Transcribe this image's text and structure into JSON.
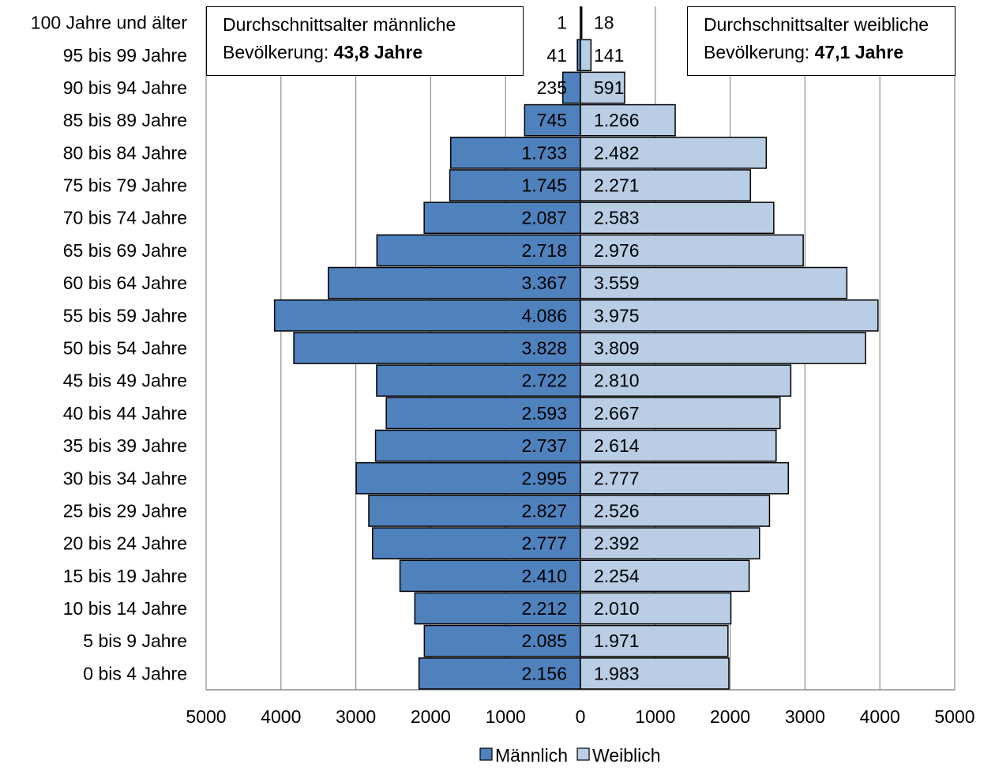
{
  "chart_data": {
    "type": "bar",
    "orientation": "horizontal",
    "layout": "population-pyramid",
    "categories": [
      "100 Jahre und älter",
      "95 bis 99 Jahre",
      "90 bis 94 Jahre",
      "85 bis 89 Jahre",
      "80 bis 84 Jahre",
      "75 bis 79 Jahre",
      "70 bis 74 Jahre",
      "65 bis 69 Jahre",
      "60 bis 64 Jahre",
      "55 bis 59 Jahre",
      "50 bis 54 Jahre",
      "45 bis 49 Jahre",
      "40 bis 44 Jahre",
      "35 bis 39 Jahre",
      "30 bis 34 Jahre",
      "25 bis 29 Jahre",
      "20 bis 24 Jahre",
      "15 bis 19 Jahre",
      "10 bis 14 Jahre",
      "5 bis 9 Jahre",
      "0 bis 4 Jahre"
    ],
    "series": [
      {
        "name": "Männlich",
        "color": "#4f81bd",
        "values": [
          1,
          41,
          235,
          745,
          1733,
          1745,
          2087,
          2718,
          3367,
          4086,
          3828,
          2722,
          2593,
          2737,
          2995,
          2827,
          2777,
          2410,
          2212,
          2085,
          2156
        ],
        "labels": [
          "1",
          "41",
          "235",
          "745",
          "1.733",
          "1.745",
          "2.087",
          "2.718",
          "3.367",
          "4.086",
          "3.828",
          "2.722",
          "2.593",
          "2.737",
          "2.995",
          "2.827",
          "2.777",
          "2.410",
          "2.212",
          "2.085",
          "2.156"
        ]
      },
      {
        "name": "Weiblich",
        "color": "#b9cde5",
        "values": [
          18,
          141,
          591,
          1266,
          2482,
          2271,
          2583,
          2976,
          3559,
          3975,
          3809,
          2810,
          2667,
          2614,
          2777,
          2526,
          2392,
          2254,
          2010,
          1971,
          1983
        ],
        "labels": [
          "18",
          "141",
          "591",
          "1.266",
          "2.482",
          "2.271",
          "2.583",
          "2.976",
          "3.559",
          "3.975",
          "3.809",
          "2.810",
          "2.667",
          "2.614",
          "2.777",
          "2.526",
          "2.392",
          "2.254",
          "2.010",
          "1.971",
          "1.983"
        ]
      }
    ],
    "xlim": [
      -5000,
      5000
    ],
    "xticks": [
      -5000,
      -4000,
      -3000,
      -2000,
      -1000,
      0,
      1000,
      2000,
      3000,
      4000,
      5000
    ],
    "xtick_labels": [
      "5000",
      "4000",
      "3000",
      "2000",
      "1000",
      "0",
      "1000",
      "2000",
      "3000",
      "4000",
      "5000"
    ],
    "grid": true,
    "legend_position": "bottom",
    "annotations": {
      "male": {
        "text": "Durchschnittsalter männliche",
        "text2": "Bevölkerung: ",
        "value": "43,8 Jahre"
      },
      "female": {
        "text": "Durchschnittsalter weibliche",
        "text2": "Bevölkerung: ",
        "value": "47,1 Jahre"
      }
    }
  }
}
